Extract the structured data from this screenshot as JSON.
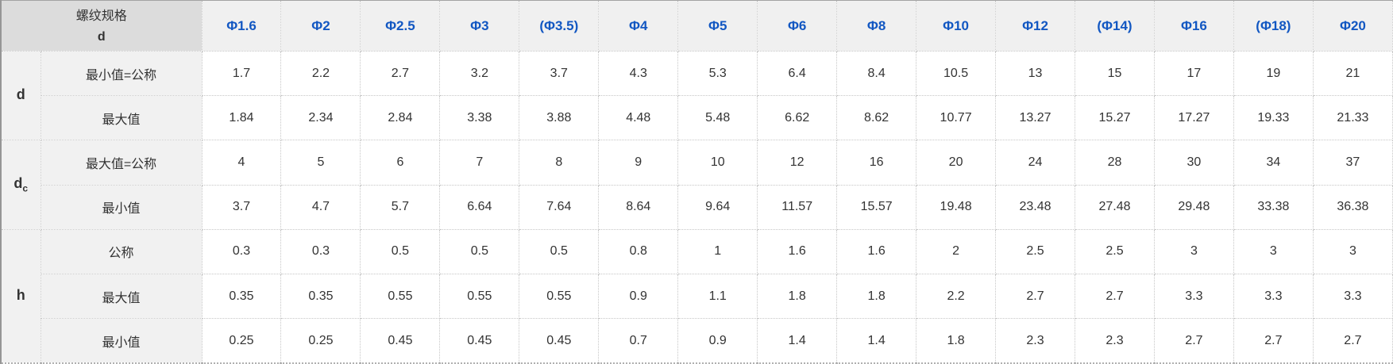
{
  "table": {
    "header": {
      "spec_label_line1": "螺纹规格",
      "spec_label_line2": "d",
      "columns": [
        "Φ1.6",
        "Φ2",
        "Φ2.5",
        "Φ3",
        "(Φ3.5)",
        "Φ4",
        "Φ5",
        "Φ6",
        "Φ8",
        "Φ10",
        "Φ12",
        "(Φ14)",
        "Φ16",
        "(Φ18)",
        "Φ20"
      ]
    },
    "groups": [
      {
        "key_base": "d",
        "key_sub": "",
        "rows": [
          {
            "label": "最小值=公称",
            "values": [
              "1.7",
              "2.2",
              "2.7",
              "3.2",
              "3.7",
              "4.3",
              "5.3",
              "6.4",
              "8.4",
              "10.5",
              "13",
              "15",
              "17",
              "19",
              "21"
            ]
          },
          {
            "label": "最大值",
            "values": [
              "1.84",
              "2.34",
              "2.84",
              "3.38",
              "3.88",
              "4.48",
              "5.48",
              "6.62",
              "8.62",
              "10.77",
              "13.27",
              "15.27",
              "17.27",
              "19.33",
              "21.33"
            ]
          }
        ]
      },
      {
        "key_base": "d",
        "key_sub": "c",
        "rows": [
          {
            "label": "最大值=公称",
            "values": [
              "4",
              "5",
              "6",
              "7",
              "8",
              "9",
              "10",
              "12",
              "16",
              "20",
              "24",
              "28",
              "30",
              "34",
              "37"
            ]
          },
          {
            "label": "最小值",
            "values": [
              "3.7",
              "4.7",
              "5.7",
              "6.64",
              "7.64",
              "8.64",
              "9.64",
              "11.57",
              "15.57",
              "19.48",
              "23.48",
              "27.48",
              "29.48",
              "33.38",
              "36.38"
            ]
          }
        ]
      },
      {
        "key_base": "h",
        "key_sub": "",
        "rows": [
          {
            "label": "公称",
            "values": [
              "0.3",
              "0.3",
              "0.5",
              "0.5",
              "0.5",
              "0.8",
              "1",
              "1.6",
              "1.6",
              "2",
              "2.5",
              "2.5",
              "3",
              "3",
              "3"
            ]
          },
          {
            "label": "最大值",
            "values": [
              "0.35",
              "0.35",
              "0.55",
              "0.55",
              "0.55",
              "0.9",
              "1.1",
              "1.8",
              "1.8",
              "2.2",
              "2.7",
              "2.7",
              "3.3",
              "3.3",
              "3.3"
            ]
          },
          {
            "label": "最小值",
            "values": [
              "0.25",
              "0.25",
              "0.45",
              "0.45",
              "0.45",
              "0.7",
              "0.9",
              "1.4",
              "1.4",
              "1.8",
              "2.3",
              "2.3",
              "2.7",
              "2.7",
              "2.7"
            ]
          }
        ]
      }
    ],
    "colors": {
      "header_spec_bg": "#dcdcdc",
      "header_col_bg": "#f0f0f0",
      "label_col_bg": "#f1f1f1",
      "header_col_text": "#1257c2",
      "body_text": "#333333",
      "border_dotted": "#c6c6c6",
      "border_outer": "#969696"
    }
  }
}
